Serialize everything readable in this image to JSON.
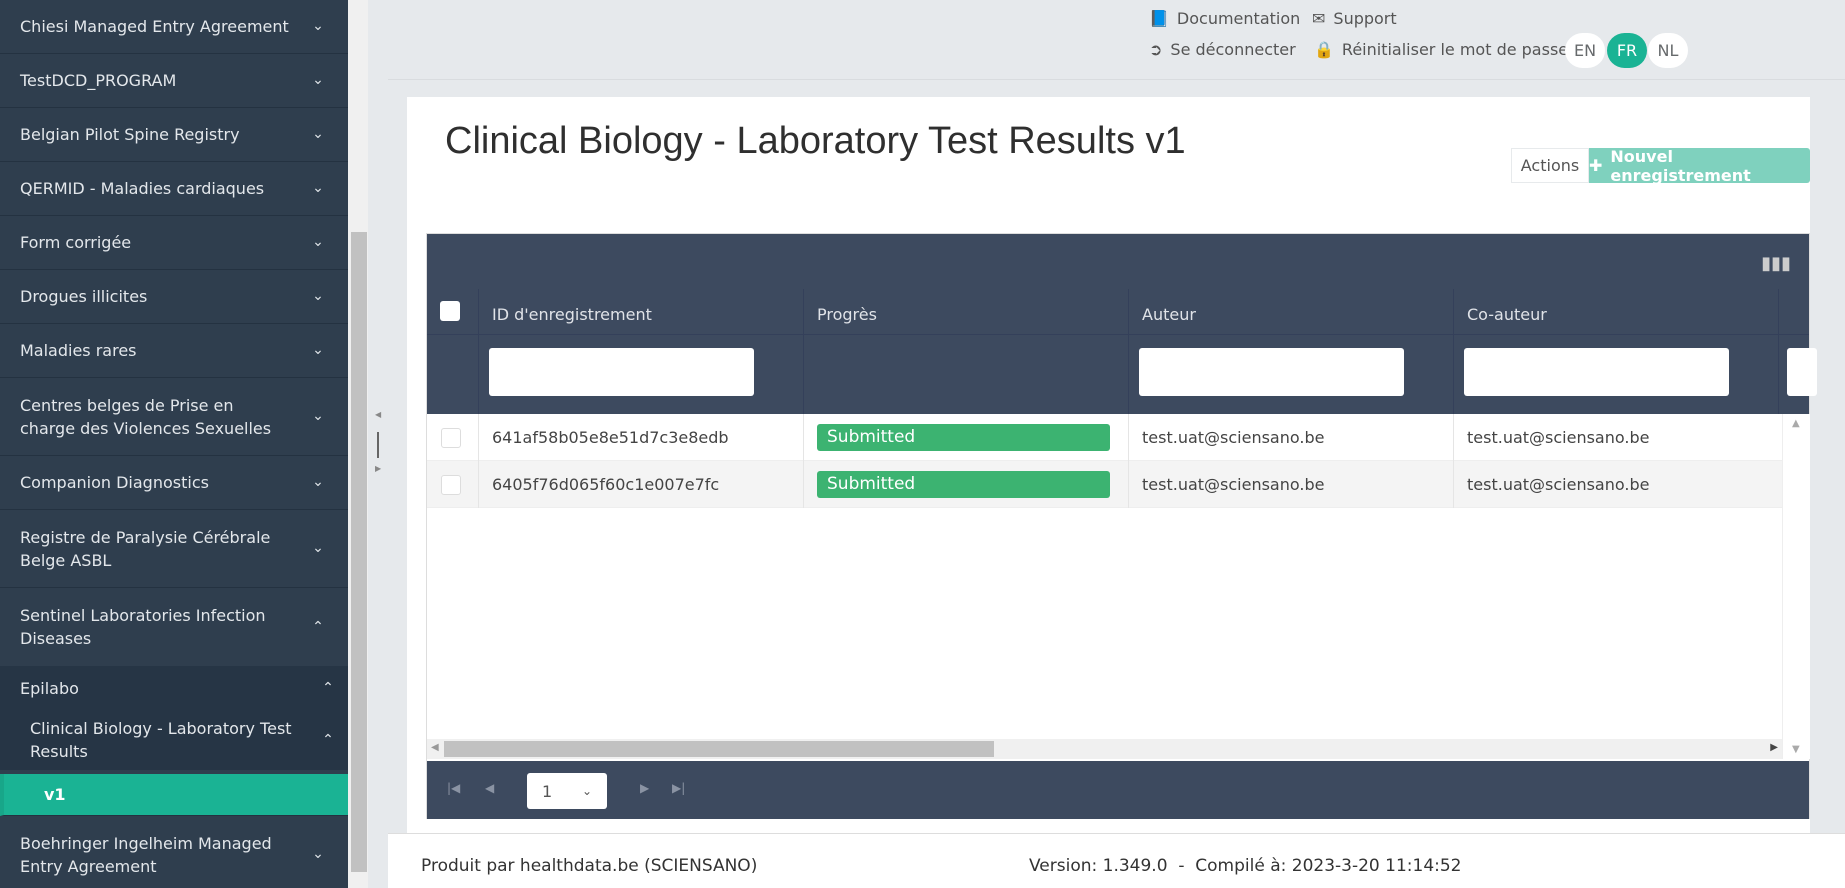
{
  "sidebar": {
    "items": [
      {
        "label": "Chiesi Managed Entry Agreement",
        "expanded": false
      },
      {
        "label": "TestDCD_PROGRAM",
        "expanded": false
      },
      {
        "label": "Belgian Pilot Spine Registry",
        "expanded": false
      },
      {
        "label": "QERMID - Maladies cardiaques",
        "expanded": false
      },
      {
        "label": "Form corrigée",
        "expanded": false
      },
      {
        "label": "Drogues illicites",
        "expanded": false
      },
      {
        "label": "Maladies rares",
        "expanded": false
      },
      {
        "label": "Centres belges de Prise en charge des Violences Sexuelles",
        "expanded": false
      },
      {
        "label": "Companion Diagnostics",
        "expanded": false
      },
      {
        "label": "Registre de Paralysie Cérébrale Belge ASBL",
        "expanded": false
      },
      {
        "label": "Sentinel Laboratories Infection Diseases",
        "expanded": true
      }
    ],
    "sub": "Epilabo",
    "sub2": "Clinical Biology - Laboratory Test Results",
    "active": "v1",
    "last": "Boehringer Ingelheim Managed Entry Agreement"
  },
  "topbar": {
    "documentation": "Documentation",
    "support": "Support",
    "logout": "Se déconnecter",
    "reset_password": "Réinitialiser le mot de passe",
    "languages": [
      "EN",
      "FR",
      "NL"
    ],
    "active_language": "FR"
  },
  "page": {
    "title": "Clinical Biology - Laboratory Test Results v1",
    "actions": "Actions",
    "new_record": "Nouvel enregistrement"
  },
  "grid": {
    "columns": [
      "ID d'enregistrement",
      "Progrès",
      "Auteur",
      "Co-auteur"
    ],
    "rows": [
      {
        "id": "641af58b05e8e51d7c3e8edb",
        "progress": "Submitted",
        "author": "test.uat@sciensano.be",
        "coauthor": "test.uat@sciensano.be"
      },
      {
        "id": "6405f76d065f60c1e007e7fc",
        "progress": "Submitted",
        "author": "test.uat@sciensano.be",
        "coauthor": "test.uat@sciensano.be"
      }
    ],
    "page": "1"
  },
  "footer": {
    "produced_by": "Produit par healthdata.be (SCIENSANO)",
    "version": "Version: 1.349.0  -  Compilé à: 2023-3-20 11:14:52"
  },
  "colors": {
    "accent": "#1ab394",
    "sidebar": "#2f3e4e",
    "grid_header": "#3d4a5f",
    "badge": "#3cb371"
  }
}
